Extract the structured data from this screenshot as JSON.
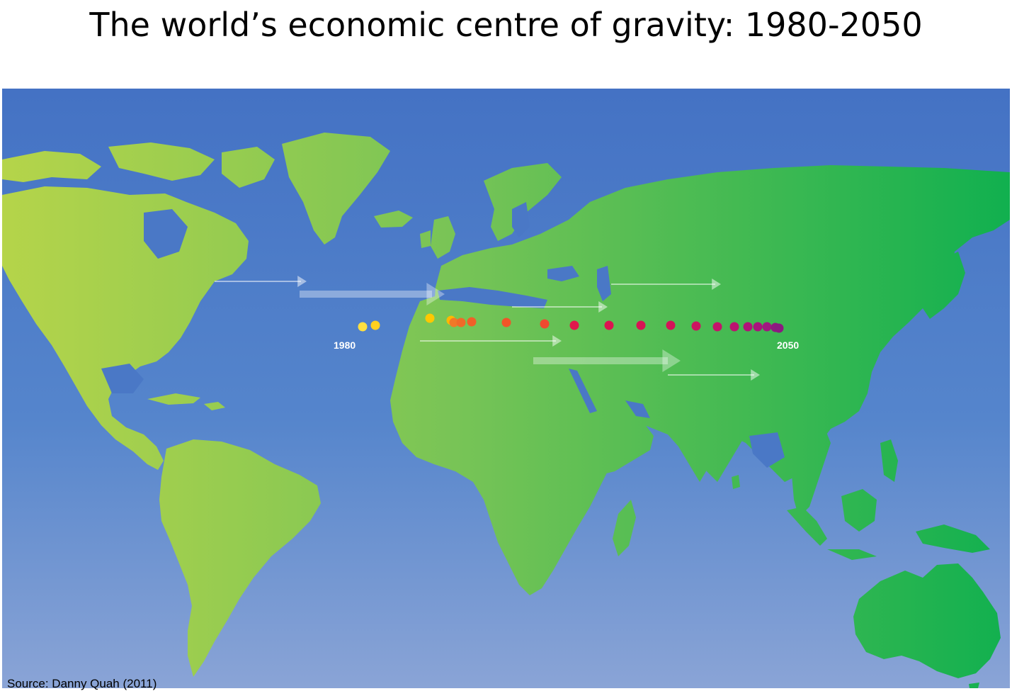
{
  "title": "The world’s economic centre of gravity: 1980-2050",
  "source": "Source:  Danny Quah (2011)",
  "map": {
    "ocean_color_top": "#4472c4",
    "ocean_color_bottom": "#8aa4d6",
    "land_color_west": "#b5d44a",
    "land_color_east": "#11b04f",
    "path_labels": {
      "start": "1980",
      "end": "2050"
    },
    "gravity_path": [
      {
        "color": "#ffe040"
      },
      {
        "color": "#ffd020"
      },
      {
        "color": "#ffc800"
      },
      {
        "color": "#ffb800"
      },
      {
        "color": "#f07828"
      },
      {
        "color": "#f06a28"
      },
      {
        "color": "#f06028"
      },
      {
        "color": "#f05528"
      },
      {
        "color": "#f04a30"
      },
      {
        "color": "#e0184c"
      },
      {
        "color": "#dc1450"
      },
      {
        "color": "#d81454"
      },
      {
        "color": "#d41458"
      },
      {
        "color": "#cc1460"
      },
      {
        "color": "#c4146a"
      },
      {
        "color": "#bc1470"
      },
      {
        "color": "#b01478"
      },
      {
        "color": "#a8147c"
      },
      {
        "color": "#a01880"
      },
      {
        "color": "#901880"
      },
      {
        "color": "#8a1a80"
      }
    ]
  }
}
